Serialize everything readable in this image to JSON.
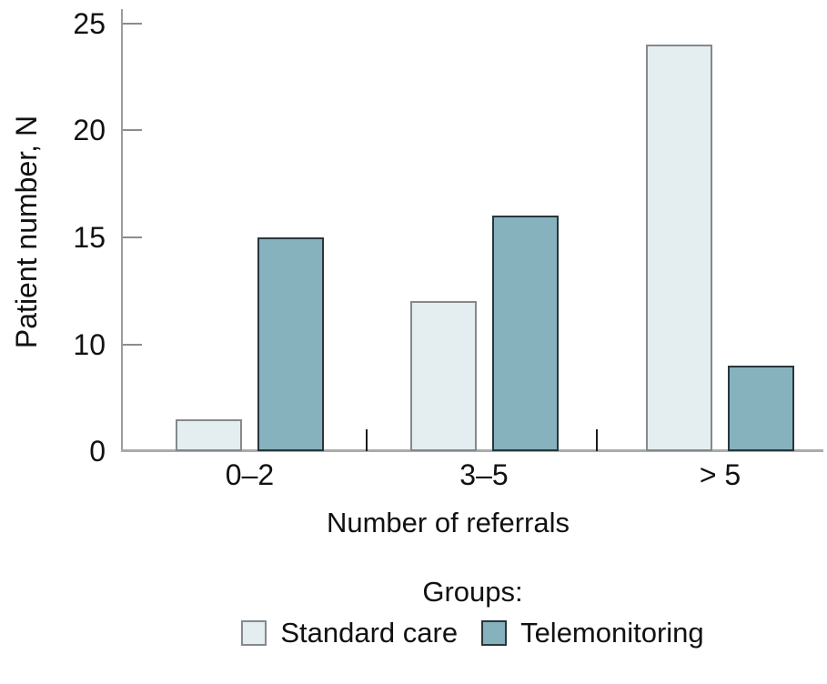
{
  "figure": {
    "background_color": "#ffffff",
    "text_color": "#111111",
    "axis_color": "#9c9c9c"
  },
  "chart_data": {
    "type": "bar",
    "title": "",
    "categories": [
      "0–2",
      "3–5",
      "> 5"
    ],
    "series": [
      {
        "name": "Standard care",
        "values": [
          3,
          12,
          24
        ],
        "fill_color": "#e4edf0",
        "border_color": "#84898c"
      },
      {
        "name": "Telemonitoring",
        "values": [
          15,
          16,
          8
        ],
        "fill_color": "#85b2bd",
        "border_color": "#29363c"
      }
    ],
    "xlabel": "Number of referrals",
    "ylabel": "Patient number, N",
    "ylim": [
      0,
      25
    ],
    "yticks": [
      0,
      10,
      15,
      20,
      25
    ],
    "grid": "off",
    "legend_title": "Groups:",
    "legend_position": "bottom"
  }
}
